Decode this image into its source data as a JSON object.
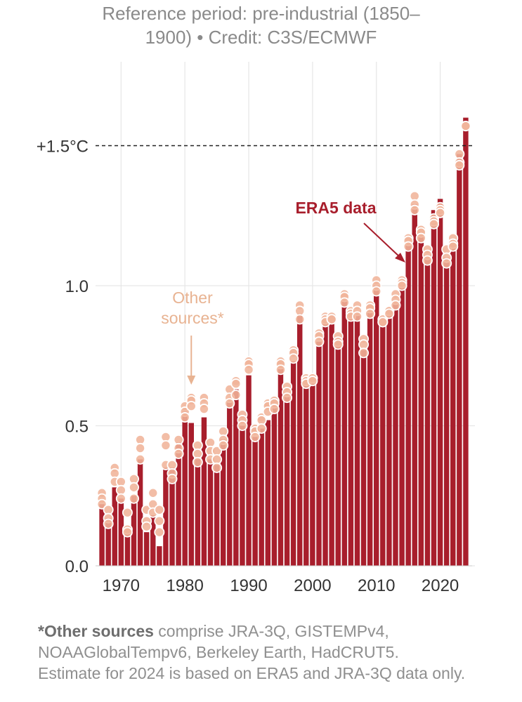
{
  "subtitle": {
    "line1": "Reference period: pre-industrial (1850–",
    "line2": "1900) • Credit: C3S/ECMWF"
  },
  "footnote": {
    "bold": "*Other sources",
    "line1_rest": " comprise JRA-3Q, GISTEMPv4,",
    "line2": "NOAAGlobalTempv6, Berkeley Earth, HadCRUT5.",
    "line3": "Estimate for 2024 is based on ERA5 and JRA-3Q data only."
  },
  "colors": {
    "bar": "#a81e2c",
    "dot_fill": "#f0b49a",
    "dot_stroke": "#ffffff",
    "era5_label": "#a81e2c",
    "other_label": "#e8b392",
    "grid": "#e6e6e6",
    "axis_text": "#333333"
  },
  "chart_data": {
    "type": "bar",
    "x": [
      1967,
      1968,
      1969,
      1970,
      1971,
      1972,
      1973,
      1974,
      1975,
      1976,
      1977,
      1978,
      1979,
      1980,
      1981,
      1982,
      1983,
      1984,
      1985,
      1986,
      1987,
      1988,
      1989,
      1990,
      1991,
      1992,
      1993,
      1994,
      1995,
      1996,
      1997,
      1998,
      1999,
      2000,
      2001,
      2002,
      2003,
      2004,
      2005,
      2006,
      2007,
      2008,
      2009,
      2010,
      2011,
      2012,
      2013,
      2014,
      2015,
      2016,
      2017,
      2018,
      2019,
      2020,
      2021,
      2022,
      2023,
      2024
    ],
    "series": [
      {
        "name": "ERA5 data",
        "values": [
          0.22,
          0.17,
          0.28,
          0.24,
          0.13,
          0.25,
          0.38,
          0.12,
          0.18,
          0.07,
          0.35,
          0.35,
          0.44,
          0.55,
          0.51,
          0.38,
          0.53,
          0.38,
          0.36,
          0.45,
          0.59,
          0.63,
          0.5,
          0.68,
          0.46,
          0.49,
          0.52,
          0.58,
          0.71,
          0.61,
          0.73,
          0.9,
          0.65,
          0.65,
          0.8,
          0.87,
          0.87,
          0.8,
          0.95,
          0.88,
          0.9,
          0.77,
          0.91,
          1.0,
          0.87,
          0.9,
          0.94,
          1.01,
          1.15,
          1.29,
          1.19,
          1.1,
          1.27,
          1.31,
          1.1,
          1.15,
          1.47,
          1.6
        ]
      },
      {
        "name": "Other sources*",
        "points": [
          [
            0.26,
            0.24,
            0.22
          ],
          [
            0.2,
            0.17,
            0.15
          ],
          [
            0.35,
            0.33,
            0.3
          ],
          [
            0.3,
            0.27,
            0.24
          ],
          [
            0.19,
            0.13,
            0.12
          ],
          [
            0.31,
            0.28,
            0.24
          ],
          [
            0.45,
            0.42,
            0.38
          ],
          [
            0.2,
            0.16,
            0.14
          ],
          [
            0.26,
            0.22,
            0.19
          ],
          [
            0.2,
            0.16,
            0.12
          ],
          [
            0.46,
            0.43,
            0.36
          ],
          [
            0.36,
            0.33,
            0.31
          ],
          [
            0.45,
            0.42,
            0.4
          ],
          [
            0.57,
            0.55,
            0.53
          ],
          [
            0.6,
            0.59,
            0.57
          ],
          [
            0.43,
            0.4,
            0.37
          ],
          [
            0.6,
            0.58,
            0.56
          ],
          [
            0.44,
            0.41,
            0.38
          ],
          [
            0.41,
            0.38,
            0.35
          ],
          [
            0.48,
            0.45,
            0.43
          ],
          [
            0.63,
            0.6,
            0.58
          ],
          [
            0.66,
            0.65,
            0.61
          ],
          [
            0.54,
            0.52,
            0.5
          ],
          [
            0.73,
            0.72,
            0.7
          ],
          [
            0.49,
            0.48,
            0.46
          ],
          [
            0.53,
            0.52,
            0.49
          ],
          [
            0.58,
            0.57,
            0.55
          ],
          [
            0.59,
            0.58,
            0.56
          ],
          [
            0.73,
            0.72,
            0.7
          ],
          [
            0.64,
            0.62,
            0.6
          ],
          [
            0.77,
            0.76,
            0.74
          ],
          [
            0.93,
            0.91,
            0.88
          ],
          [
            0.67,
            0.66,
            0.65
          ],
          [
            0.67,
            0.67,
            0.66
          ],
          [
            0.83,
            0.82,
            0.8
          ],
          [
            0.89,
            0.88,
            0.87
          ],
          [
            0.89,
            0.88,
            0.88
          ],
          [
            0.82,
            0.8,
            0.79
          ],
          [
            0.97,
            0.96,
            0.94
          ],
          [
            0.91,
            0.9,
            0.89
          ],
          [
            0.93,
            0.91,
            0.89
          ],
          [
            0.81,
            0.79,
            0.76
          ],
          [
            0.93,
            0.92,
            0.9
          ],
          [
            1.02,
            1.0,
            0.98
          ],
          [
            0.88,
            0.87,
            0.87
          ],
          [
            0.91,
            0.91,
            0.9
          ],
          [
            0.97,
            0.95,
            0.93
          ],
          [
            1.02,
            1.01,
            1.0
          ],
          [
            1.17,
            1.16,
            1.14
          ],
          [
            1.32,
            1.29,
            1.27
          ],
          [
            1.2,
            1.19,
            1.17
          ],
          [
            1.13,
            1.11,
            1.09
          ],
          [
            1.24,
            1.23,
            1.22
          ],
          [
            1.28,
            1.27,
            1.26
          ],
          [
            1.13,
            1.1,
            1.08
          ],
          [
            1.17,
            1.15,
            1.14
          ],
          [
            1.47,
            1.44,
            1.43
          ],
          [
            1.57,
            1.57,
            1.57
          ]
        ]
      }
    ],
    "xticks": [
      1970,
      1980,
      1990,
      2000,
      2010,
      2020
    ],
    "xtick_labels": [
      "1970",
      "1980",
      "1990",
      "2000",
      "2010",
      "2020"
    ],
    "yticks": [
      0.0,
      0.5,
      1.0,
      1.5
    ],
    "ytick_labels": [
      "0.0",
      "0.5",
      "1.0",
      "+1.5°C"
    ],
    "xlim": [
      1966,
      2025
    ],
    "ylim": [
      0,
      1.8
    ],
    "threshold": {
      "value": 1.5,
      "style": "dashed"
    },
    "annotations": {
      "era5": {
        "text": "ERA5 data",
        "points_to_year": 2015
      },
      "other_line1": "Other",
      "other_line2": "sources*",
      "other_points_to_year": 1981
    },
    "grid": true
  }
}
